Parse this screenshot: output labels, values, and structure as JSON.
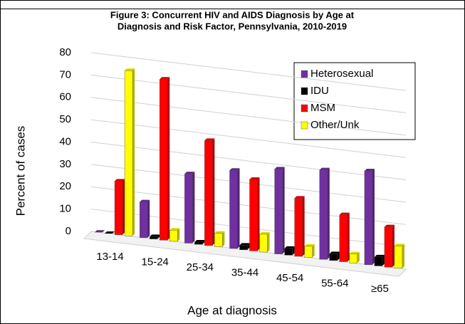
{
  "chart_data": {
    "type": "bar",
    "title": "Figure 3: Concurrent HIV and AIDS Diagnosis by Age at",
    "subtitle": "Diagnosis and Risk Factor, Pennsylvania, 2010-2019",
    "x_label": "Age at diagnosis",
    "y_label": "Percent of cases",
    "categories": [
      "13-14",
      "15-24",
      "25-34",
      "35-44",
      "45-54",
      "55-64",
      "≥65"
    ],
    "series": [
      {
        "name": "Heterosexual",
        "color": "#7030a0",
        "values": [
          0,
          16,
          31,
          35,
          38,
          40,
          42
        ]
      },
      {
        "name": "IDU",
        "color": "#000000",
        "values": [
          0,
          1,
          1,
          2,
          3,
          3,
          4
        ]
      },
      {
        "name": "MSM",
        "color": "#ff0000",
        "values": [
          24,
          72,
          47,
          32,
          26,
          21,
          18
        ]
      },
      {
        "name": "Other/Unk",
        "color": "#ffff00",
        "values": [
          74,
          5,
          6,
          8,
          5,
          4,
          10
        ]
      }
    ],
    "ylim": [
      0,
      80
    ],
    "yticks": [
      0,
      10,
      20,
      30,
      40,
      50,
      60,
      70,
      80
    ],
    "grid": true,
    "legend": "top-right"
  }
}
